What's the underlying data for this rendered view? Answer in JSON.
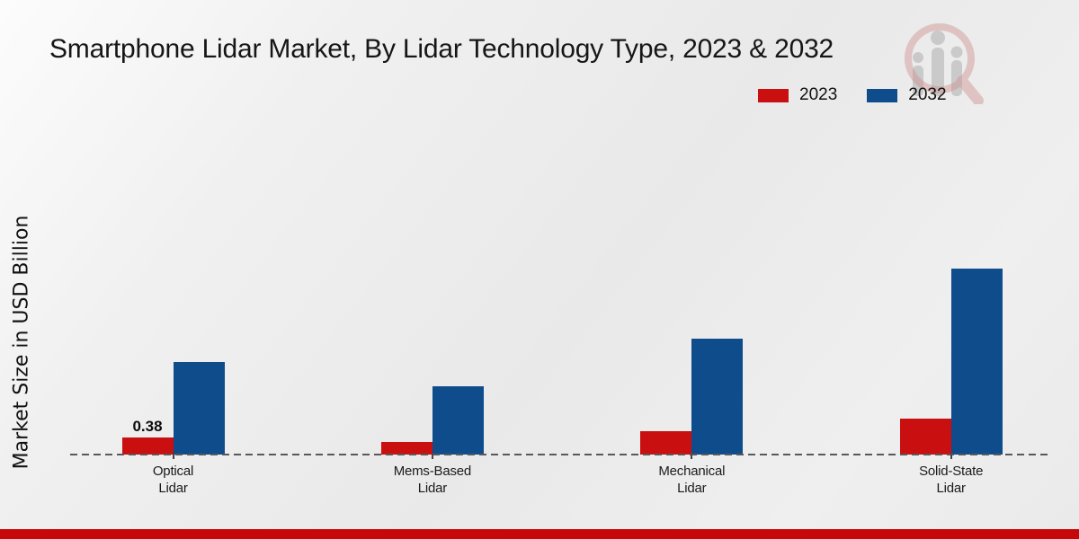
{
  "chart_data": {
    "type": "bar",
    "title": "Smartphone Lidar Market, By Lidar Technology Type, 2023 & 2032",
    "ylabel": "Market Size in USD Billion",
    "xlabel": "",
    "categories": [
      "Optical\nLidar",
      "Mems-Based\nLidar",
      "Mechanical\nLidar",
      "Solid-State\nLidar"
    ],
    "series": [
      {
        "name": "2023",
        "color": "#c90f0f",
        "values": [
          0.38,
          0.28,
          0.53,
          0.8
        ]
      },
      {
        "name": "2032",
        "color": "#0f4c8c",
        "values": [
          2.07,
          1.52,
          2.58,
          4.15
        ]
      }
    ],
    "bar_labels": [
      {
        "series_index": 0,
        "category_index": 0,
        "text": "0.38"
      }
    ],
    "ylim": [
      0,
      4.6
    ],
    "grid": false,
    "legend_position": "top-right",
    "baseline_style": "dashed",
    "units": "USD Billion"
  },
  "icons": {
    "watermark": "magnifying-glass-bar-chart-logo"
  },
  "colors": {
    "bar_2023": "#c90f0f",
    "bar_2032": "#0f4c8c",
    "footer": "#c60808",
    "background": "#ebebeb"
  }
}
